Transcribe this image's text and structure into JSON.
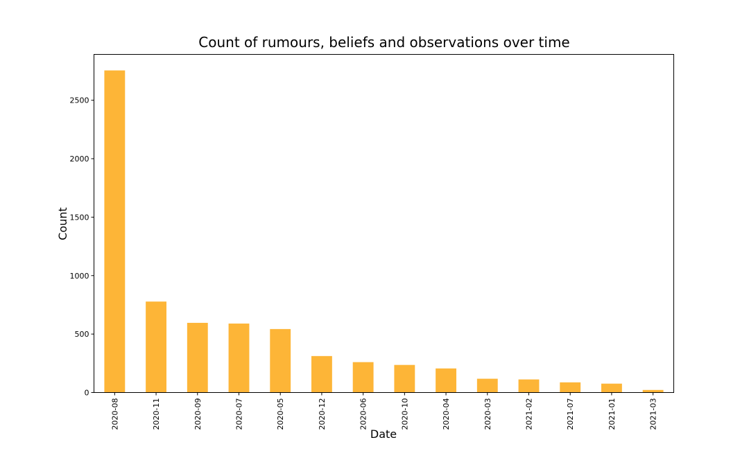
{
  "chart_data": {
    "type": "bar",
    "title": "Count of rumours, beliefs and observations over time",
    "xlabel": "Date",
    "ylabel": "Count",
    "categories": [
      "2020-08",
      "2020-11",
      "2020-09",
      "2020-07",
      "2020-05",
      "2020-12",
      "2020-06",
      "2020-10",
      "2020-04",
      "2020-03",
      "2021-02",
      "2021-07",
      "2021-01",
      "2021-03"
    ],
    "values": [
      2755,
      778,
      596,
      590,
      543,
      312,
      260,
      236,
      206,
      118,
      112,
      87,
      76,
      22
    ],
    "ylim": [
      0,
      2892
    ],
    "yticks": [
      0,
      500,
      1000,
      1500,
      2000,
      2500
    ],
    "grid": false,
    "legend": "none",
    "bar_color": "#fdb537"
  }
}
